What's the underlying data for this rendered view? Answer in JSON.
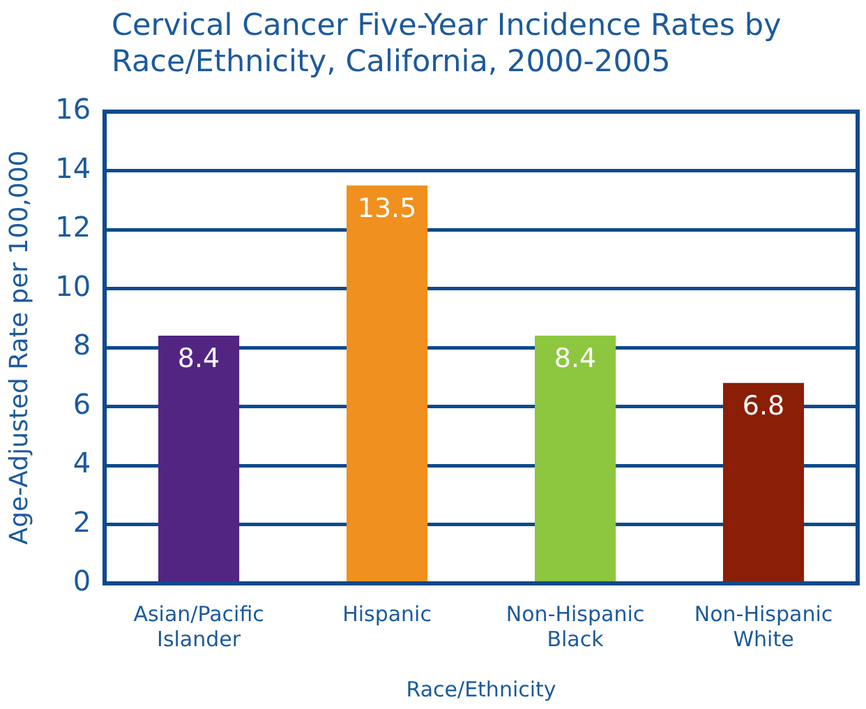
{
  "chart_data": {
    "type": "bar",
    "title": "Cervical Cancer Five-Year Incidence Rates by Race/Ethnicity, California, 2000-2005",
    "xlabel": "Race/Ethnicity",
    "ylabel": "Age-Adjusted Rate per 100,000",
    "categories": [
      "Asian/Pacific Islander",
      "Hispanic",
      "Non-Hispanic Black",
      "Non-Hispanic White"
    ],
    "values": [
      8.4,
      13.5,
      8.4,
      6.8
    ],
    "colors": [
      "#522583",
      "#f0901e",
      "#8dc63f",
      "#8b1e06"
    ],
    "ylim": [
      0,
      16
    ],
    "yticks": [
      0,
      2,
      4,
      6,
      8,
      10,
      12,
      14,
      16
    ],
    "grid": "y",
    "data_labels": true
  }
}
